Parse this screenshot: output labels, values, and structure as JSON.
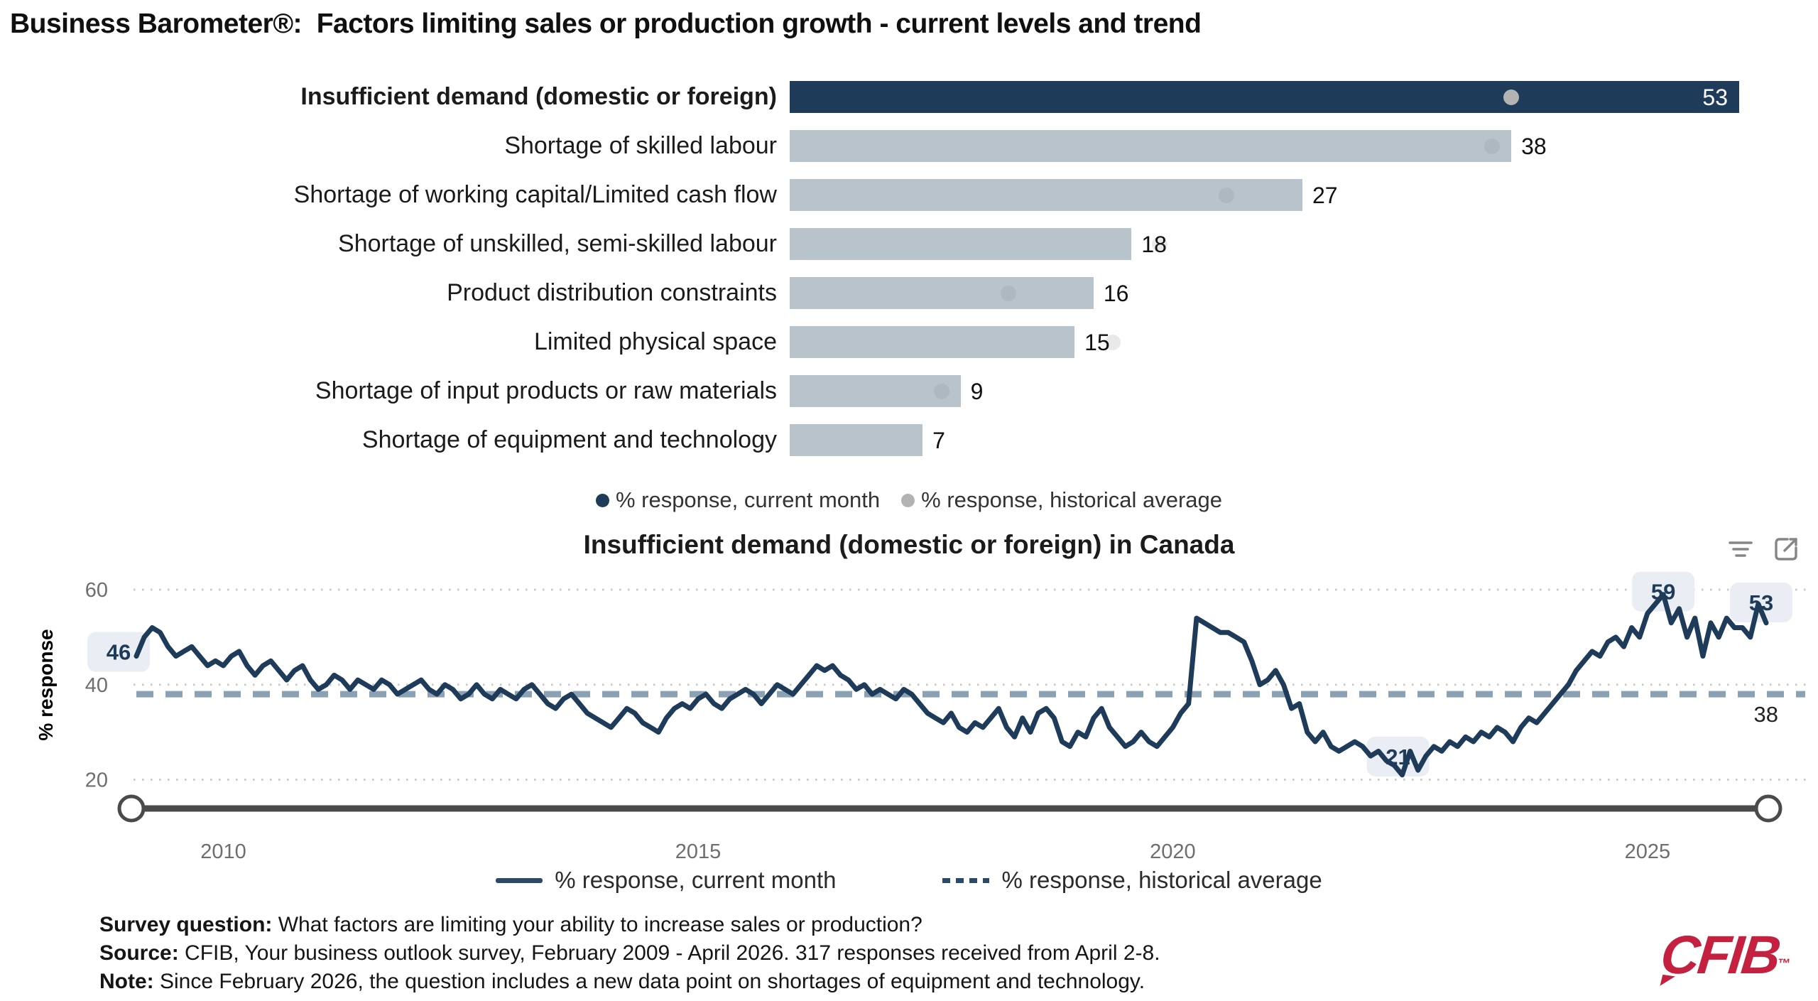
{
  "title": "Business Barometer®:  Factors limiting sales or production growth - current levels and trend",
  "bar_chart": {
    "axis_max": 50,
    "legend": [
      {
        "label": "% response, current month",
        "color": "#1e3c5a"
      },
      {
        "label": "% response, historical average",
        "color": "#b3b3b3"
      }
    ],
    "rows": [
      {
        "label": "Insufficient demand (domestic or foreign)",
        "value": 53,
        "historical": 38,
        "selected": true
      },
      {
        "label": "Shortage of skilled labour",
        "value": 38,
        "historical": 37,
        "selected": false
      },
      {
        "label": "Shortage of working capital/Limited cash flow",
        "value": 27,
        "historical": 23,
        "selected": false
      },
      {
        "label": "Shortage of unskilled, semi-skilled labour",
        "value": 18,
        "historical": 19.5,
        "selected": false
      },
      {
        "label": "Product distribution constraints",
        "value": 16,
        "historical": 11.5,
        "selected": false
      },
      {
        "label": "Limited physical space",
        "value": 15,
        "historical": 17,
        "selected": false
      },
      {
        "label": "Shortage of input products or raw materials",
        "value": 9,
        "historical": 8,
        "selected": false
      },
      {
        "label": "Shortage of equipment and technology",
        "value": 7,
        "historical": null,
        "selected": false
      }
    ]
  },
  "line_chart": {
    "title": "Insufficient demand (domestic or foreign) in Canada",
    "ylabel": "% response",
    "yticks": [
      60,
      40,
      20
    ],
    "xticks": [
      {
        "label": "2010",
        "index": 11
      },
      {
        "label": "2015",
        "index": 71
      },
      {
        "label": "2020",
        "index": 131
      },
      {
        "label": "2025",
        "index": 191
      }
    ],
    "average": {
      "value": 38,
      "label": "38"
    },
    "point_labels": [
      {
        "index": 0,
        "label": "46"
      },
      {
        "index": 160,
        "label": "21"
      },
      {
        "index": 193,
        "label": "59"
      },
      {
        "index": 206,
        "label": "53"
      }
    ],
    "legend": [
      {
        "label": "% response, current month",
        "style": "solid"
      },
      {
        "label": "% response, historical average",
        "style": "dashed"
      }
    ],
    "toolbar_icons": [
      "filter-icon",
      "expand-icon"
    ],
    "colors": {
      "series": "#1e3c5a",
      "average": "#8ba1b4",
      "label_box": "#e9edf3",
      "grid": "#cbcbcb"
    }
  },
  "chart_data": [
    {
      "type": "bar",
      "orientation": "horizontal",
      "title": "Factors limiting sales or production growth - current levels",
      "categories": [
        "Insufficient demand (domestic or foreign)",
        "Shortage of skilled labour",
        "Shortage of working capital/Limited cash flow",
        "Shortage of unskilled, semi-skilled labour",
        "Product distribution constraints",
        "Limited physical space",
        "Shortage of input products or raw materials",
        "Shortage of equipment and technology"
      ],
      "series": [
        {
          "name": "% response, current month",
          "values": [
            53,
            38,
            27,
            18,
            16,
            15,
            9,
            7
          ]
        },
        {
          "name": "% response, historical average",
          "values": [
            38,
            37,
            23,
            19.5,
            11.5,
            17,
            8,
            null
          ]
        }
      ],
      "xlim": [
        0,
        50
      ],
      "legend_position": "bottom"
    },
    {
      "type": "line",
      "title": "Insufficient demand (domestic or foreign) in Canada",
      "ylabel": "% response",
      "yticks": [
        20,
        40,
        60
      ],
      "ylim": [
        15,
        63
      ],
      "x_start": "2009-02",
      "x_end": "2026-04",
      "frequency": "monthly",
      "xticks": [
        "2010",
        "2015",
        "2020",
        "2025"
      ],
      "grid": "dotted-horizontal",
      "legend_position": "bottom",
      "series": [
        {
          "name": "% response, current month",
          "values": [
            46,
            50,
            52,
            51,
            48,
            46,
            47,
            48,
            46,
            44,
            45,
            44,
            46,
            47,
            44,
            42,
            44,
            45,
            43,
            41,
            43,
            44,
            41,
            39,
            40,
            42,
            41,
            39,
            41,
            40,
            39,
            41,
            40,
            38,
            39,
            40,
            41,
            39,
            38,
            40,
            39,
            37,
            38,
            40,
            38,
            37,
            39,
            38,
            37,
            39,
            40,
            38,
            36,
            35,
            37,
            38,
            36,
            34,
            33,
            32,
            31,
            33,
            35,
            34,
            32,
            31,
            30,
            33,
            35,
            36,
            35,
            37,
            38,
            36,
            35,
            37,
            38,
            39,
            38,
            36,
            38,
            40,
            39,
            38,
            40,
            42,
            44,
            43,
            44,
            42,
            41,
            39,
            40,
            38,
            39,
            38,
            37,
            39,
            38,
            36,
            34,
            33,
            32,
            34,
            31,
            30,
            32,
            31,
            33,
            35,
            31,
            29,
            33,
            30,
            34,
            35,
            33,
            28,
            27,
            30,
            29,
            33,
            35,
            31,
            29,
            27,
            28,
            30,
            28,
            27,
            29,
            31,
            34,
            36,
            54,
            53,
            52,
            51,
            51,
            50,
            49,
            45,
            40,
            41,
            43,
            40,
            35,
            36,
            30,
            28,
            30,
            27,
            26,
            27,
            28,
            27,
            25,
            26,
            24,
            23,
            21,
            26,
            22,
            25,
            27,
            26,
            28,
            27,
            29,
            28,
            30,
            29,
            31,
            30,
            28,
            31,
            33,
            32,
            34,
            36,
            38,
            40,
            43,
            45,
            47,
            46,
            49,
            50,
            48,
            52,
            50,
            55,
            57,
            59,
            53,
            56,
            50,
            54,
            46,
            53,
            50,
            54,
            52,
            52,
            50,
            57,
            53
          ]
        },
        {
          "name": "% response, historical average",
          "type": "constant",
          "value": 38
        }
      ],
      "annotations": [
        {
          "x": "2009-02",
          "value": 46
        },
        {
          "x": "2022-06",
          "value": 21
        },
        {
          "x": "2025-03",
          "value": 59
        },
        {
          "x": "2026-04",
          "value": 53
        }
      ]
    }
  ],
  "footer": {
    "lines": [
      {
        "bold": "Survey question:",
        "text": " What factors are limiting your ability to increase sales or production?"
      },
      {
        "bold": "Source:",
        "text": " CFIB, Your business outlook survey, February 2009 - April 2026. 317 responses received from April 2-8."
      },
      {
        "bold": "Note:",
        "text": " Since February 2026, the question includes a new data point on shortages of equipment and technology."
      }
    ]
  },
  "logo": {
    "text": "CFIB",
    "tm": "™",
    "color": "#c4203f"
  }
}
